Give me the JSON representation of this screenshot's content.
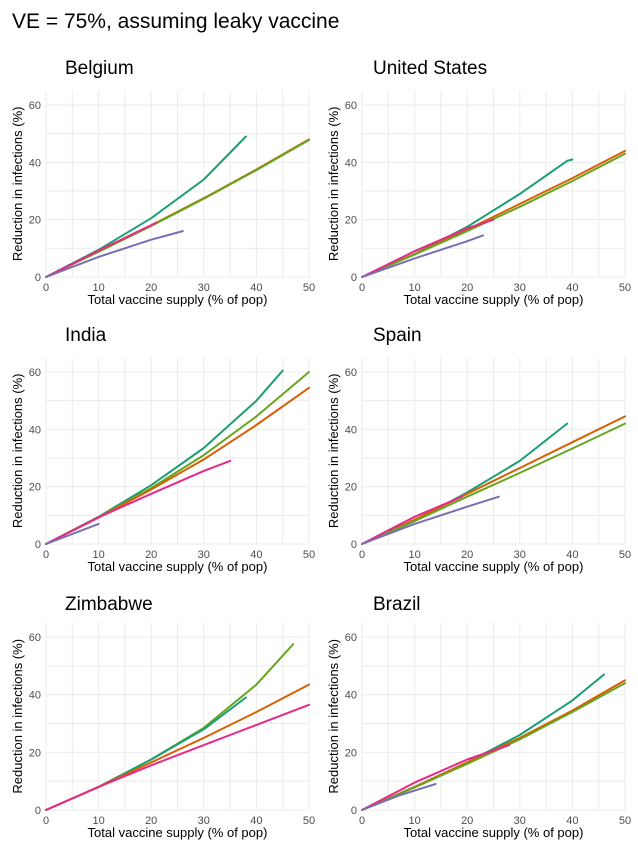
{
  "title": "VE = 75%, assuming leaky vaccine",
  "colors": {
    "teal": "#1b9e77",
    "orange": "#d95f02",
    "purple": "#7570b3",
    "magenta": "#e7298a",
    "green": "#66a61e"
  },
  "chart_data": [
    {
      "type": "line",
      "title": "Belgium",
      "xlabel": "Total vaccine supply (% of pop)",
      "ylabel": "Reduction in infections (%)",
      "xlim": [
        0,
        50
      ],
      "ylim": [
        0,
        65
      ],
      "xticks": [
        0,
        10,
        20,
        30,
        40,
        50
      ],
      "yticks": [
        0,
        20,
        40,
        60
      ],
      "grid": true,
      "series": [
        {
          "color": "teal",
          "x": [
            0,
            10,
            20,
            30,
            38
          ],
          "y": [
            0,
            9.5,
            20.5,
            34,
            49
          ]
        },
        {
          "color": "orange",
          "x": [
            0,
            10,
            20,
            30,
            40,
            50
          ],
          "y": [
            0,
            9,
            18,
            27.5,
            37.5,
            48
          ]
        },
        {
          "color": "green",
          "x": [
            0,
            10,
            20,
            30,
            40,
            50
          ],
          "y": [
            0,
            8.8,
            17.8,
            27.3,
            37.3,
            47.8
          ]
        },
        {
          "color": "magenta",
          "x": [
            0,
            10,
            21
          ],
          "y": [
            0,
            9.2,
            19
          ]
        },
        {
          "color": "purple",
          "x": [
            0,
            10,
            20,
            26
          ],
          "y": [
            0,
            7,
            13,
            16
          ]
        }
      ]
    },
    {
      "type": "line",
      "title": "United States",
      "xlabel": "Total vaccine supply (% of pop)",
      "ylabel": "Reduction in infections (%)",
      "xlim": [
        0,
        50
      ],
      "ylim": [
        0,
        65
      ],
      "xticks": [
        0,
        10,
        20,
        30,
        40,
        50
      ],
      "yticks": [
        0,
        20,
        40,
        60
      ],
      "grid": true,
      "series": [
        {
          "color": "teal",
          "x": [
            0,
            10,
            20,
            30,
            39,
            40
          ],
          "y": [
            0,
            8,
            17.5,
            29,
            40.5,
            41
          ]
        },
        {
          "color": "orange",
          "x": [
            0,
            10,
            20,
            30,
            40,
            50
          ],
          "y": [
            0,
            8,
            16.5,
            25.5,
            34.5,
            44
          ]
        },
        {
          "color": "green",
          "x": [
            0,
            10,
            20,
            30,
            40,
            50
          ],
          "y": [
            0,
            7.8,
            16,
            24.5,
            33.5,
            43
          ]
        },
        {
          "color": "magenta",
          "x": [
            0,
            10,
            20,
            25
          ],
          "y": [
            0,
            9,
            17,
            20
          ]
        },
        {
          "color": "purple",
          "x": [
            0,
            10,
            20,
            23
          ],
          "y": [
            0,
            6.5,
            12.5,
            14.5
          ]
        }
      ]
    },
    {
      "type": "line",
      "title": "India",
      "xlabel": "Total vaccine supply (% of pop)",
      "ylabel": "Reduction in infections (%)",
      "xlim": [
        0,
        50
      ],
      "ylim": [
        0,
        65
      ],
      "xticks": [
        0,
        10,
        20,
        30,
        40,
        50
      ],
      "yticks": [
        0,
        20,
        40,
        60
      ],
      "grid": true,
      "series": [
        {
          "color": "teal",
          "x": [
            0,
            10,
            20,
            30,
            40,
            45
          ],
          "y": [
            0,
            9.5,
            20.5,
            33.5,
            50,
            60.5
          ]
        },
        {
          "color": "green",
          "x": [
            0,
            10,
            20,
            30,
            40,
            50
          ],
          "y": [
            0,
            9.3,
            19.5,
            31,
            44.5,
            60
          ]
        },
        {
          "color": "orange",
          "x": [
            0,
            10,
            20,
            30,
            40,
            50
          ],
          "y": [
            0,
            9.2,
            19,
            29.5,
            41.5,
            54.5
          ]
        },
        {
          "color": "magenta",
          "x": [
            0,
            10,
            20,
            30,
            35
          ],
          "y": [
            0,
            9.3,
            17.5,
            25.5,
            29
          ]
        },
        {
          "color": "purple",
          "x": [
            0,
            5,
            10
          ],
          "y": [
            0,
            3.5,
            7
          ]
        }
      ]
    },
    {
      "type": "line",
      "title": "Spain",
      "xlabel": "Total vaccine supply (% of pop)",
      "ylabel": "Reduction in infections (%)",
      "xlim": [
        0,
        50
      ],
      "ylim": [
        0,
        65
      ],
      "xticks": [
        0,
        10,
        20,
        30,
        40,
        50
      ],
      "yticks": [
        0,
        20,
        40,
        60
      ],
      "grid": true,
      "series": [
        {
          "color": "teal",
          "x": [
            0,
            10,
            20,
            30,
            39
          ],
          "y": [
            0,
            8,
            18,
            29,
            42
          ]
        },
        {
          "color": "orange",
          "x": [
            0,
            10,
            20,
            30,
            40,
            50
          ],
          "y": [
            0,
            8.5,
            17.5,
            26.5,
            35.5,
            44.5
          ]
        },
        {
          "color": "green",
          "x": [
            0,
            10,
            20,
            30,
            40,
            50
          ],
          "y": [
            0,
            8,
            16.5,
            24.8,
            33.3,
            42
          ]
        },
        {
          "color": "magenta",
          "x": [
            0,
            10,
            19
          ],
          "y": [
            0,
            9.5,
            16.5
          ]
        },
        {
          "color": "purple",
          "x": [
            0,
            10,
            20,
            26
          ],
          "y": [
            0,
            7,
            13,
            16.5
          ]
        }
      ]
    },
    {
      "type": "line",
      "title": "Zimbabwe",
      "xlabel": "Total vaccine supply (% of pop)",
      "ylabel": "Reduction in infections (%)",
      "xlim": [
        0,
        50
      ],
      "ylim": [
        0,
        65
      ],
      "xticks": [
        0,
        10,
        20,
        30,
        40,
        50
      ],
      "yticks": [
        0,
        20,
        40,
        60
      ],
      "grid": true,
      "series": [
        {
          "color": "green",
          "x": [
            0,
            10,
            20,
            30,
            40,
            47
          ],
          "y": [
            0,
            8,
            17.5,
            28.5,
            43.5,
            57.5
          ]
        },
        {
          "color": "teal",
          "x": [
            0,
            10,
            20,
            30,
            38
          ],
          "y": [
            0,
            8,
            17.5,
            28,
            39
          ]
        },
        {
          "color": "orange",
          "x": [
            0,
            10,
            20,
            30,
            40,
            50
          ],
          "y": [
            0,
            8,
            16.5,
            25,
            34,
            43.5
          ]
        },
        {
          "color": "magenta",
          "x": [
            0,
            10,
            20,
            30,
            40,
            50
          ],
          "y": [
            0,
            8,
            15.5,
            22.5,
            29.5,
            36.5
          ]
        }
      ]
    },
    {
      "type": "line",
      "title": "Brazil",
      "xlabel": "Total vaccine supply (% of pop)",
      "ylabel": "Reduction in infections (%)",
      "xlim": [
        0,
        50
      ],
      "ylim": [
        0,
        65
      ],
      "xticks": [
        0,
        10,
        20,
        30,
        40,
        50
      ],
      "yticks": [
        0,
        20,
        40,
        60
      ],
      "grid": true,
      "series": [
        {
          "color": "teal",
          "x": [
            0,
            10,
            20,
            30,
            40,
            46
          ],
          "y": [
            0,
            8,
            16.5,
            26,
            38,
            47
          ]
        },
        {
          "color": "orange",
          "x": [
            0,
            10,
            20,
            30,
            40,
            50
          ],
          "y": [
            0,
            8,
            16.5,
            25,
            34.5,
            45
          ]
        },
        {
          "color": "green",
          "x": [
            0,
            10,
            20,
            30,
            40,
            50
          ],
          "y": [
            0,
            7.8,
            16,
            24.5,
            34,
            44
          ]
        },
        {
          "color": "magenta",
          "x": [
            0,
            10,
            20,
            28
          ],
          "y": [
            0,
            9.5,
            17.5,
            22.5
          ]
        },
        {
          "color": "purple",
          "x": [
            0,
            7,
            14
          ],
          "y": [
            0,
            5,
            9
          ]
        }
      ]
    }
  ]
}
